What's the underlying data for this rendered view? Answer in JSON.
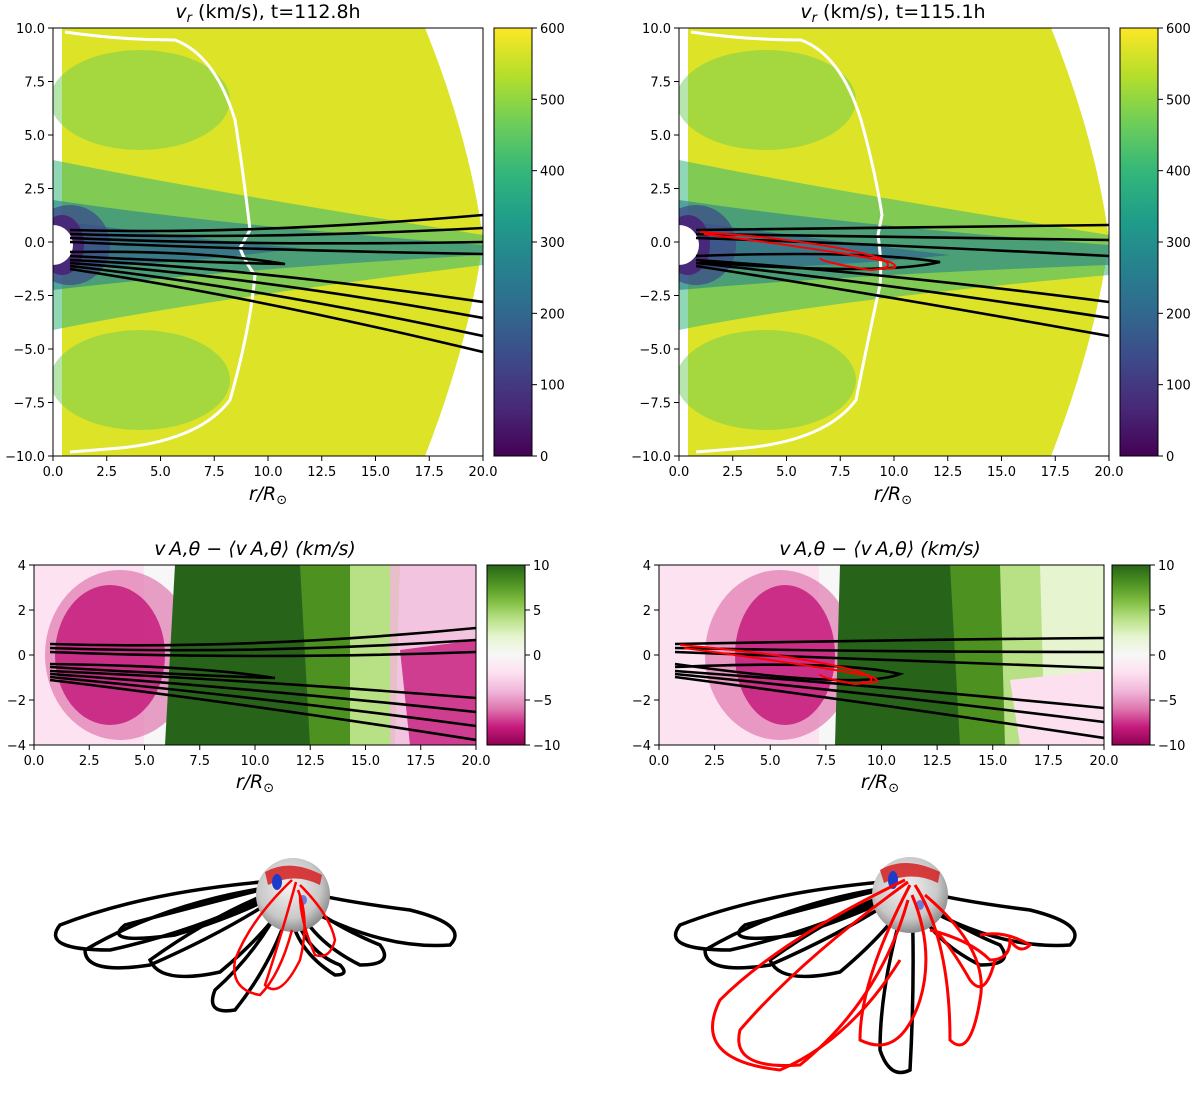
{
  "figure": {
    "panel_a": {
      "title_var": "v",
      "title_sub": "r",
      "title_rest": " (km/s), t=112.8h"
    },
    "panel_b": {
      "title_var": "v",
      "title_sub": "r",
      "title_rest": " (km/s), t=115.1h"
    },
    "panel_c": {
      "title": "v A,θ − ⟨v A,θ⟩ (km/s)"
    },
    "panel_d": {
      "title": "v A,θ − ⟨v A,θ⟩ (km/s)"
    },
    "xlabel_main": "r/R",
    "xlabel_sub": "⊙"
  },
  "chart_data": [
    {
      "type": "heatmap",
      "title": "v_r (km/s), t=112.8h",
      "xlabel": "r/R⊙",
      "xlim": [
        0,
        20
      ],
      "ylim": [
        -10,
        10
      ],
      "xticks": [
        "0.0",
        "2.5",
        "5.0",
        "7.5",
        "10.0",
        "12.5",
        "15.0",
        "17.5",
        "20.0"
      ],
      "yticks": [
        "10.0",
        "7.5",
        "5.0",
        "2.5",
        "0.0",
        "−2.5",
        "−5.0",
        "−7.5",
        "−10.0"
      ],
      "colorbar": {
        "cmap": "viridis",
        "range": [
          0,
          600
        ],
        "ticks": [
          "600",
          "500",
          "400",
          "300",
          "200",
          "100",
          "0"
        ]
      },
      "field_lines": {
        "black": 8,
        "red": 0
      }
    },
    {
      "type": "heatmap",
      "title": "v_r (km/s), t=115.1h",
      "xlabel": "r/R⊙",
      "xlim": [
        0,
        20
      ],
      "ylim": [
        -10,
        10
      ],
      "xticks": [
        "0.0",
        "2.5",
        "5.0",
        "7.5",
        "10.0",
        "12.5",
        "15.0",
        "17.5",
        "20.0"
      ],
      "yticks": [
        "10.0",
        "7.5",
        "5.0",
        "2.5",
        "0.0",
        "−2.5",
        "−5.0",
        "−7.5",
        "−10.0"
      ],
      "colorbar": {
        "cmap": "viridis",
        "range": [
          0,
          600
        ],
        "ticks": [
          "600",
          "500",
          "400",
          "300",
          "200",
          "100",
          "0"
        ]
      },
      "field_lines": {
        "black": 8,
        "red": 2
      }
    },
    {
      "type": "heatmap",
      "title": "v_A,θ − ⟨v_A,θ⟩ (km/s)",
      "xlabel": "r/R⊙",
      "xlim": [
        0,
        20
      ],
      "ylim": [
        -4,
        4
      ],
      "xticks": [
        "0.0",
        "2.5",
        "5.0",
        "7.5",
        "10.0",
        "12.5",
        "15.0",
        "17.5",
        "20.0"
      ],
      "yticks": [
        "4",
        "2",
        "0",
        "−2",
        "−4"
      ],
      "colorbar": {
        "cmap": "PiYG",
        "range": [
          -10,
          10
        ],
        "ticks": [
          "10",
          "5",
          "0",
          "−5",
          "−10"
        ]
      },
      "field_lines": {
        "black": 8,
        "red": 0
      }
    },
    {
      "type": "heatmap",
      "title": "v_A,θ − ⟨v_A,θ⟩ (km/s)",
      "xlabel": "r/R⊙",
      "xlim": [
        0,
        20
      ],
      "ylim": [
        -4,
        4
      ],
      "xticks": [
        "0.0",
        "2.5",
        "5.0",
        "7.5",
        "10.0",
        "12.5",
        "15.0",
        "17.5",
        "20.0"
      ],
      "yticks": [
        "4",
        "2",
        "0",
        "−2",
        "−4"
      ],
      "colorbar": {
        "cmap": "PiYG",
        "range": [
          -10,
          10
        ],
        "ticks": [
          "10",
          "5",
          "0",
          "−5",
          "−10"
        ]
      },
      "field_lines": {
        "black": 8,
        "red": 2
      }
    }
  ],
  "colors": {
    "viridis": [
      "#440154",
      "#482878",
      "#3e4989",
      "#31688e",
      "#26828e",
      "#1f9e89",
      "#35b779",
      "#6ece58",
      "#b5de2b",
      "#fde725"
    ],
    "piyg": [
      "#8e0152",
      "#c51b7d",
      "#de77ae",
      "#f1b6da",
      "#fde0ef",
      "#f7f7f7",
      "#e6f5d0",
      "#b8e186",
      "#7fbc41",
      "#4d9221",
      "#276419"
    ],
    "field_line": "#000000",
    "flux_rope": "#ff0000",
    "separatrix": "#ffffff"
  }
}
